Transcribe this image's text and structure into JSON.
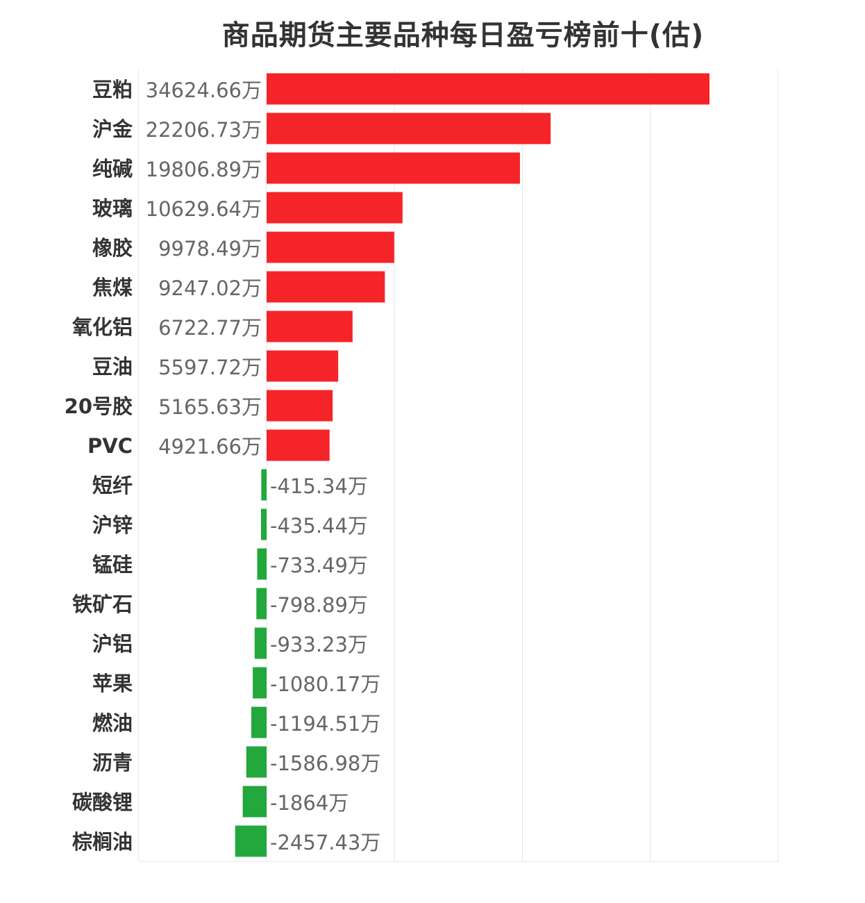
{
  "chart_data": {
    "type": "bar",
    "orientation": "horizontal",
    "title": "商品期货主要品种每日盈亏榜前十(估)",
    "unit": "万",
    "categories": [
      "豆粕",
      "沪金",
      "纯碱",
      "玻璃",
      "橡胶",
      "焦煤",
      "氧化铝",
      "豆油",
      "20号胶",
      "PVC",
      "短纤",
      "沪锌",
      "锰硅",
      "铁矿石",
      "沪铝",
      "苹果",
      "燃油",
      "沥青",
      "碳酸锂",
      "棕榈油"
    ],
    "values": [
      34624.66,
      22206.73,
      19806.89,
      10629.64,
      9978.49,
      9247.02,
      6722.77,
      5597.72,
      5165.63,
      4921.66,
      -415.34,
      -435.44,
      -733.49,
      -798.89,
      -933.23,
      -1080.17,
      -1194.51,
      -1586.98,
      -1864,
      -2457.43
    ],
    "labels": [
      "34624.66万",
      "22206.73万",
      "19806.89万",
      "10629.64万",
      "9978.49万",
      "9247.02万",
      "6722.77万",
      "5597.72万",
      "5165.63万",
      "4921.66万",
      "-415.34万",
      "-435.44万",
      "-733.49万",
      "-798.89万",
      "-933.23万",
      "-1080.17万",
      "-1194.51万",
      "-1586.98万",
      "-1864万",
      "-2457.43万"
    ],
    "xlim": [
      -10000,
      40000
    ],
    "grid": true,
    "colors": {
      "positive": "#f52428",
      "negative": "#22a83c",
      "grid": "#e6e6e6"
    }
  }
}
